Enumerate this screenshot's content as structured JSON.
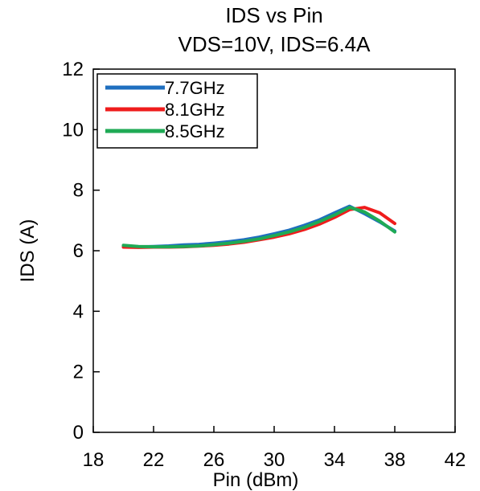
{
  "chart_data": {
    "type": "line",
    "title": [
      "IDS vs Pin",
      "VDS=10V, IDS=6.4A"
    ],
    "xlabel": "Pin (dBm)",
    "ylabel": "IDS (A)",
    "xlim": [
      18,
      42
    ],
    "ylim": [
      0,
      12
    ],
    "xticks": [
      18,
      22,
      26,
      30,
      34,
      38,
      42
    ],
    "yticks": [
      0,
      2,
      4,
      6,
      8,
      10,
      12
    ],
    "grid": false,
    "legend_position": "top-left",
    "series": [
      {
        "name": "7.7GHz",
        "color": "#1f6fbf",
        "x": [
          20,
          21,
          22,
          23,
          24,
          25,
          26,
          27,
          28,
          29,
          30,
          31,
          32,
          33,
          34,
          35,
          36,
          37,
          38
        ],
        "y": [
          6.15,
          6.13,
          6.14,
          6.16,
          6.19,
          6.21,
          6.25,
          6.3,
          6.36,
          6.45,
          6.56,
          6.68,
          6.84,
          7.02,
          7.25,
          7.47,
          7.22,
          6.95,
          6.65
        ]
      },
      {
        "name": "8.1GHz",
        "color": "#ef1c1c",
        "x": [
          20,
          21,
          22,
          23,
          24,
          25,
          26,
          27,
          28,
          29,
          30,
          31,
          32,
          33,
          34,
          35,
          36,
          37,
          38
        ],
        "y": [
          6.12,
          6.11,
          6.12,
          6.12,
          6.13,
          6.15,
          6.18,
          6.22,
          6.28,
          6.36,
          6.45,
          6.56,
          6.7,
          6.88,
          7.1,
          7.36,
          7.43,
          7.25,
          6.9
        ]
      },
      {
        "name": "8.5GHz",
        "color": "#1faa55",
        "x": [
          20,
          21,
          22,
          23,
          24,
          25,
          26,
          27,
          28,
          29,
          30,
          31,
          32,
          33,
          34,
          35,
          36,
          37,
          38
        ],
        "y": [
          6.18,
          6.14,
          6.13,
          6.13,
          6.14,
          6.16,
          6.2,
          6.25,
          6.31,
          6.39,
          6.5,
          6.62,
          6.77,
          6.96,
          7.18,
          7.43,
          7.28,
          6.98,
          6.62
        ]
      }
    ]
  }
}
